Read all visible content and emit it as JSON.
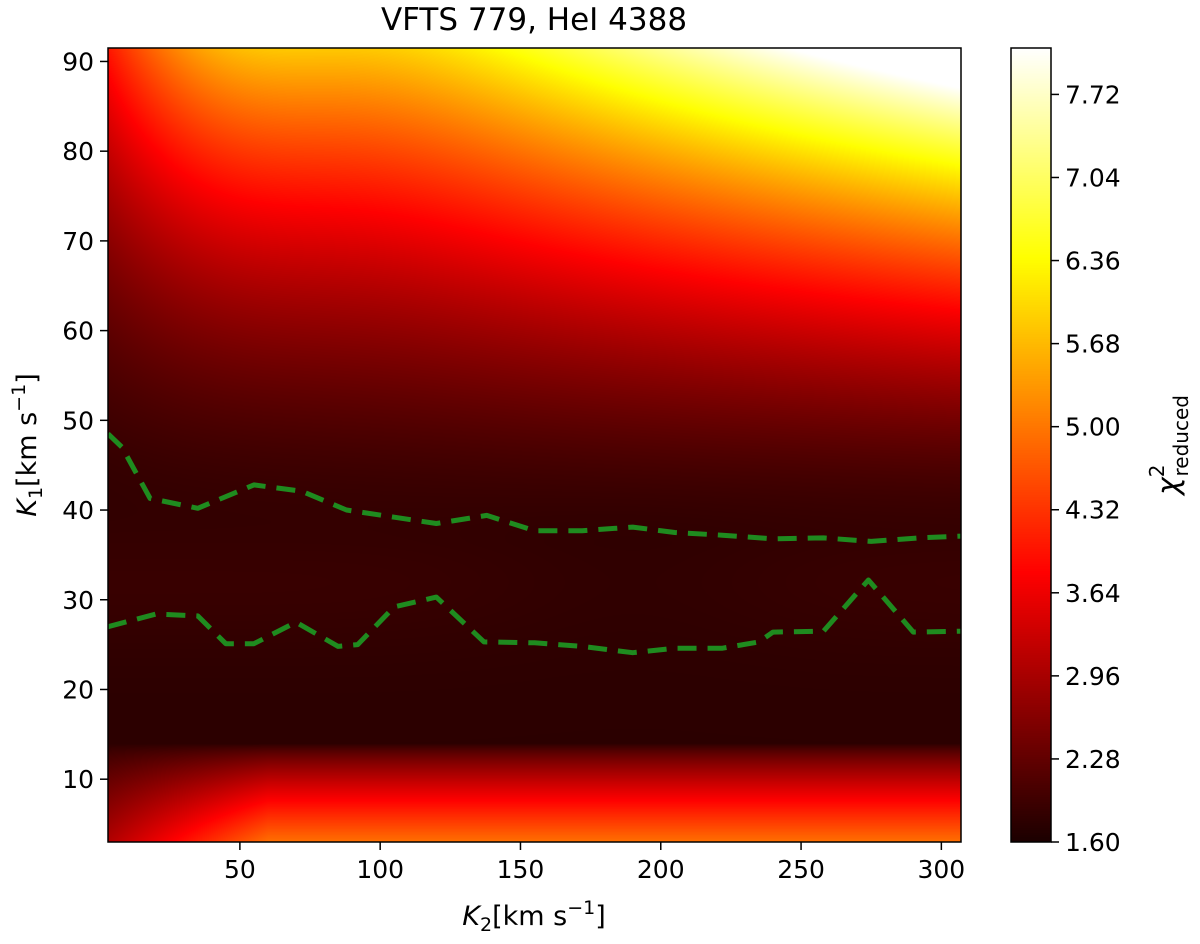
{
  "chart_data": {
    "type": "heatmap",
    "title": "VFTS 779, HeI 4388",
    "xlabel": {
      "sym": "K",
      "sub": "2",
      "unit": "[km s",
      "exp": "−1",
      "close": "]"
    },
    "ylabel": {
      "sym": "K",
      "sub": "1",
      "unit": "[km s",
      "exp": "−1",
      "close": "]"
    },
    "colorbar_label": {
      "sym": "χ",
      "sup": "2",
      "sub": "reduced"
    },
    "colormap": "hot",
    "xlim": [
      3,
      307
    ],
    "ylim": [
      3,
      91.5
    ],
    "x_ticks": [
      50,
      100,
      150,
      200,
      250,
      300
    ],
    "y_ticks": [
      10,
      20,
      30,
      40,
      50,
      60,
      70,
      80,
      90
    ],
    "clim": [
      1.6,
      8.1
    ],
    "colorbar_ticks": [
      "1.60",
      "2.28",
      "2.96",
      "3.64",
      "4.32",
      "5.00",
      "5.68",
      "6.36",
      "7.04",
      "7.72"
    ],
    "contour_color": "#1f8b1f",
    "contours": [
      {
        "name": "upper",
        "x": [
          3,
          8,
          18,
          35,
          55,
          72,
          88,
          105,
          120,
          138,
          155,
          172,
          190,
          205,
          222,
          240,
          258,
          275,
          292,
          307
        ],
        "y": [
          48.5,
          47,
          41.3,
          40.2,
          42.8,
          42.1,
          40,
          39.2,
          38.5,
          39.4,
          37.7,
          37.7,
          38.1,
          37.5,
          37.2,
          36.8,
          36.9,
          36.5,
          36.9,
          37.1
        ]
      },
      {
        "name": "lower",
        "x": [
          3,
          20,
          35,
          45,
          55,
          70,
          85,
          92,
          105,
          120,
          137,
          155,
          172,
          190,
          205,
          222,
          235,
          240,
          258,
          274,
          290,
          307
        ],
        "y": [
          27,
          28.4,
          28.2,
          25.1,
          25.1,
          27.5,
          24.8,
          25,
          29.2,
          30.3,
          25.3,
          25.2,
          24.8,
          24.1,
          24.6,
          24.6,
          25.3,
          26.4,
          26.5,
          32.2,
          26.4,
          26.5
        ]
      }
    ]
  }
}
